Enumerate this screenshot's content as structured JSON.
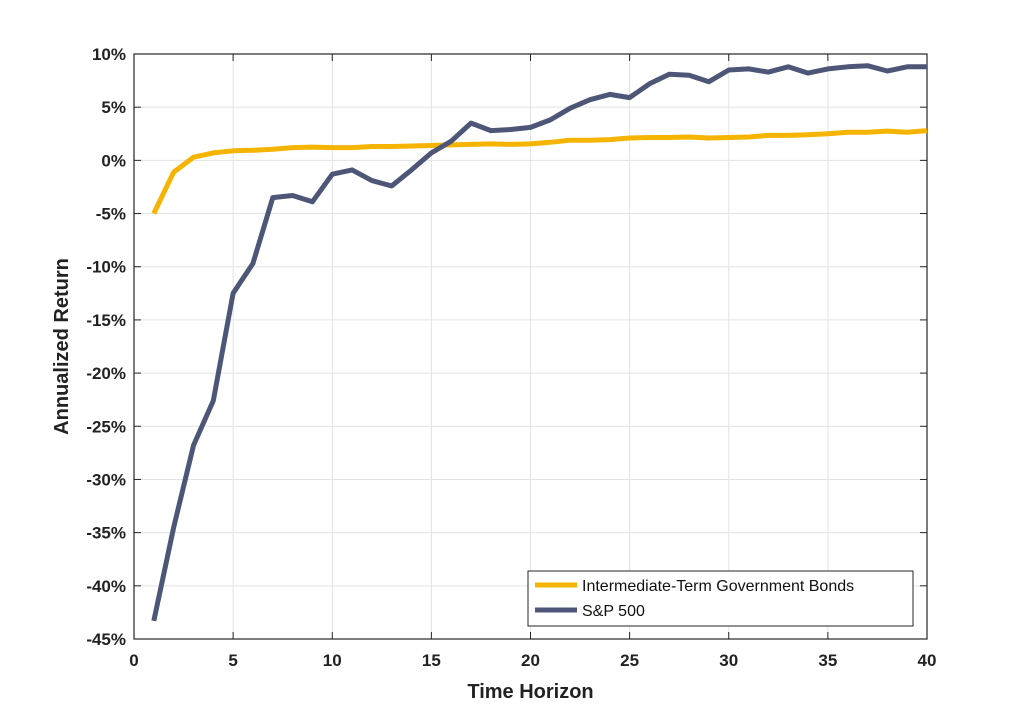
{
  "chart_data": {
    "type": "line",
    "xlabel": "Time Horizon",
    "ylabel": "Annualized Return",
    "xlim": [
      0,
      40
    ],
    "ylim": [
      -45,
      10
    ],
    "xticks": [
      0,
      5,
      10,
      15,
      20,
      25,
      30,
      35,
      40
    ],
    "xtick_labels": [
      "0",
      "5",
      "10",
      "15",
      "20",
      "25",
      "30",
      "35",
      "40"
    ],
    "yticks": [
      10,
      5,
      0,
      -5,
      -10,
      -15,
      -20,
      -25,
      -30,
      -35,
      -40,
      -45
    ],
    "ytick_labels": [
      "10%",
      "5%",
      "0%",
      "-5%",
      "-10%",
      "-15%",
      "-20%",
      "-25%",
      "-30%",
      "-35%",
      "-40%",
      "-45%"
    ],
    "grid": true,
    "legend_position": "bottom-right",
    "x": [
      1,
      2,
      3,
      4,
      5,
      6,
      7,
      8,
      9,
      10,
      11,
      12,
      13,
      14,
      15,
      16,
      17,
      18,
      19,
      20,
      21,
      22,
      23,
      24,
      25,
      26,
      27,
      28,
      29,
      30,
      31,
      32,
      33,
      34,
      35,
      36,
      37,
      38,
      39,
      40
    ],
    "series": [
      {
        "name": "Intermediate-Term Government Bonds",
        "color": "#F5B400",
        "values": [
          -5.0,
          -1.1,
          0.3,
          0.7,
          0.9,
          0.95,
          1.05,
          1.2,
          1.25,
          1.2,
          1.2,
          1.3,
          1.3,
          1.35,
          1.4,
          1.45,
          1.5,
          1.55,
          1.5,
          1.55,
          1.7,
          1.9,
          1.9,
          1.95,
          2.1,
          2.15,
          2.15,
          2.2,
          2.1,
          2.15,
          2.2,
          2.35,
          2.35,
          2.4,
          2.5,
          2.65,
          2.65,
          2.75,
          2.65,
          2.8
        ]
      },
      {
        "name": "S&P 500",
        "color": "#4E5677",
        "values": [
          -43.3,
          -34.5,
          -26.8,
          -22.6,
          -12.5,
          -9.7,
          -3.5,
          -3.3,
          -3.9,
          -1.3,
          -0.9,
          -1.9,
          -2.4,
          -0.9,
          0.7,
          1.8,
          3.5,
          2.8,
          2.9,
          3.1,
          3.8,
          4.9,
          5.7,
          6.2,
          5.9,
          7.2,
          8.1,
          8.0,
          7.4,
          8.5,
          8.6,
          8.3,
          8.8,
          8.2,
          8.6,
          8.8,
          8.9,
          8.4,
          8.8,
          8.8
        ]
      }
    ]
  }
}
